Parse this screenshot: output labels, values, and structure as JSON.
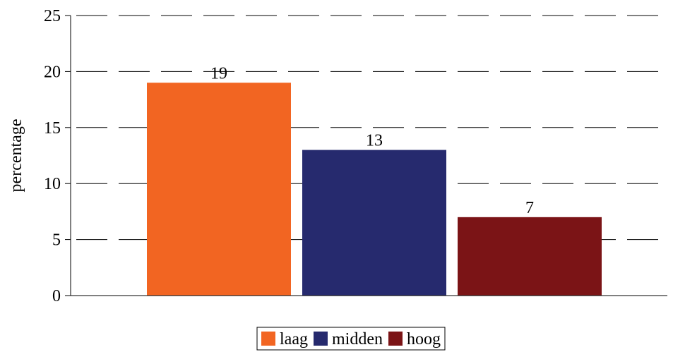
{
  "chart_data": {
    "type": "bar",
    "categories": [
      ""
    ],
    "series": [
      {
        "name": "laag",
        "values": [
          19
        ],
        "color": "#f26522"
      },
      {
        "name": "midden",
        "values": [
          13
        ],
        "color": "#262a6e"
      },
      {
        "name": "hoog",
        "values": [
          7
        ],
        "color": "#7b1416"
      }
    ],
    "ylabel": "percentage",
    "ylim": [
      0,
      25
    ],
    "yticks": [
      0,
      5,
      10,
      15,
      20,
      25
    ],
    "grid": true,
    "legend_position": "bottom"
  }
}
